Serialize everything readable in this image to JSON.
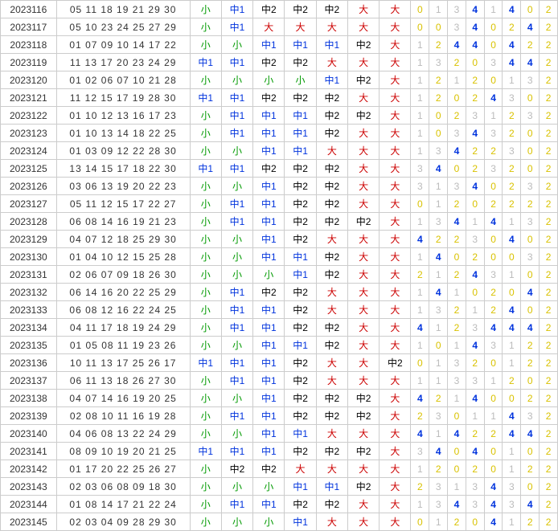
{
  "colors": {
    "green": "#009900",
    "blue": "#0033dd",
    "black": "#000000",
    "red": "#cc0000",
    "yellow": "#d9c200",
    "gray": "#bbbbbb",
    "border": "#cccccc",
    "bg": "#ffffff"
  },
  "legend": {
    "小": "green",
    "中1": "blue",
    "中2": "black",
    "大": "red"
  },
  "countColors": {
    "0": "yellow",
    "1": "gray",
    "2": "yellow",
    "3": "gray",
    "4": "bblue"
  },
  "columns": {
    "period": {
      "width": 54
    },
    "numbers": {
      "width": 130
    },
    "slots": {
      "count": 7,
      "width": 30
    },
    "counts": {
      "count": 8,
      "width": 17
    }
  },
  "rows": [
    {
      "p": "2023116",
      "n": "05 11 18 19 21 29 30",
      "s": [
        "小",
        "中1",
        "中2",
        "中2",
        "中2",
        "大",
        "大"
      ],
      "c": [
        0,
        1,
        3,
        4,
        1,
        4,
        0,
        2
      ]
    },
    {
      "p": "2023117",
      "n": "05 10 23 24 25 27 29",
      "s": [
        "小",
        "中1",
        "大",
        "大",
        "大",
        "大",
        "大"
      ],
      "c": [
        0,
        0,
        3,
        4,
        0,
        2,
        4,
        2
      ]
    },
    {
      "p": "2023118",
      "n": "01 07 09 10 14 17 22",
      "s": [
        "小",
        "小",
        "中1",
        "中1",
        "中1",
        "中2",
        "大"
      ],
      "c": [
        1,
        2,
        4,
        4,
        0,
        4,
        2,
        2
      ]
    },
    {
      "p": "2023119",
      "n": "11 13 17 20 23 24 29",
      "s": [
        "中1",
        "中1",
        "中2",
        "中2",
        "大",
        "大",
        "大"
      ],
      "c": [
        1,
        3,
        2,
        0,
        3,
        4,
        4,
        2
      ]
    },
    {
      "p": "2023120",
      "n": "01 02 06 07 10 21 28",
      "s": [
        "小",
        "小",
        "小",
        "小",
        "中1",
        "中2",
        "大"
      ],
      "c": [
        1,
        2,
        1,
        2,
        0,
        1,
        3,
        2
      ]
    },
    {
      "p": "2023121",
      "n": "11 12 15 17 19 28 30",
      "s": [
        "中1",
        "中1",
        "中2",
        "中2",
        "中2",
        "大",
        "大"
      ],
      "c": [
        1,
        2,
        0,
        2,
        4,
        3,
        0,
        2
      ]
    },
    {
      "p": "2023122",
      "n": "01 10 12 13 16 17 23",
      "s": [
        "小",
        "中1",
        "中1",
        "中1",
        "中2",
        "中2",
        "大"
      ],
      "c": [
        1,
        0,
        2,
        3,
        1,
        2,
        3,
        2
      ]
    },
    {
      "p": "2023123",
      "n": "01 10 13 14 18 22 25",
      "s": [
        "小",
        "中1",
        "中1",
        "中1",
        "中2",
        "大",
        "大"
      ],
      "c": [
        1,
        0,
        3,
        4,
        3,
        2,
        0,
        2
      ]
    },
    {
      "p": "2023124",
      "n": "01 03 09 12 22 28 30",
      "s": [
        "小",
        "小",
        "中1",
        "中1",
        "大",
        "大",
        "大"
      ],
      "c": [
        1,
        3,
        4,
        2,
        2,
        3,
        0,
        2
      ]
    },
    {
      "p": "2023125",
      "n": "13 14 15 17 18 22 30",
      "s": [
        "中1",
        "中1",
        "中2",
        "中2",
        "中2",
        "大",
        "大"
      ],
      "c": [
        3,
        4,
        0,
        2,
        3,
        2,
        0,
        2
      ]
    },
    {
      "p": "2023126",
      "n": "03 06 13 19 20 22 23",
      "s": [
        "小",
        "小",
        "中1",
        "中2",
        "中2",
        "大",
        "大"
      ],
      "c": [
        3,
        1,
        3,
        4,
        0,
        2,
        3,
        2
      ]
    },
    {
      "p": "2023127",
      "n": "05 11 12 15 17 22 27",
      "s": [
        "小",
        "中1",
        "中1",
        "中2",
        "中2",
        "大",
        "大"
      ],
      "c": [
        0,
        1,
        2,
        0,
        2,
        2,
        2,
        2
      ]
    },
    {
      "p": "2023128",
      "n": "06 08 14 16 19 21 23",
      "s": [
        "小",
        "中1",
        "中1",
        "中2",
        "中2",
        "中2",
        "大"
      ],
      "c": [
        1,
        3,
        4,
        1,
        4,
        1,
        3,
        2
      ]
    },
    {
      "p": "2023129",
      "n": "04 07 12 18 25 29 30",
      "s": [
        "小",
        "小",
        "中1",
        "中2",
        "大",
        "大",
        "大"
      ],
      "c": [
        4,
        2,
        2,
        3,
        0,
        4,
        0,
        2
      ]
    },
    {
      "p": "2023130",
      "n": "01 04 10 12 15 25 28",
      "s": [
        "小",
        "小",
        "中1",
        "中1",
        "中2",
        "大",
        "大"
      ],
      "c": [
        1,
        4,
        0,
        2,
        0,
        0,
        3,
        2
      ]
    },
    {
      "p": "2023131",
      "n": "02 06 07 09 18 26 30",
      "s": [
        "小",
        "小",
        "小",
        "中1",
        "中2",
        "大",
        "大"
      ],
      "c": [
        2,
        1,
        2,
        4,
        3,
        1,
        0,
        2
      ]
    },
    {
      "p": "2023132",
      "n": "06 14 16 20 22 25 29",
      "s": [
        "小",
        "中1",
        "中2",
        "中2",
        "大",
        "大",
        "大"
      ],
      "c": [
        1,
        4,
        1,
        0,
        2,
        0,
        4,
        2
      ]
    },
    {
      "p": "2023133",
      "n": "06 08 12 16 22 24 25",
      "s": [
        "小",
        "中1",
        "中1",
        "中2",
        "大",
        "大",
        "大"
      ],
      "c": [
        1,
        3,
        2,
        1,
        2,
        4,
        0,
        2
      ]
    },
    {
      "p": "2023134",
      "n": "04 11 17 18 19 24 29",
      "s": [
        "小",
        "中1",
        "中1",
        "中2",
        "中2",
        "大",
        "大"
      ],
      "c": [
        4,
        1,
        2,
        3,
        4,
        4,
        4,
        2
      ]
    },
    {
      "p": "2023135",
      "n": "01 05 08 11 19 23 26",
      "s": [
        "小",
        "小",
        "中1",
        "中1",
        "中2",
        "大",
        "大"
      ],
      "c": [
        1,
        0,
        1,
        4,
        3,
        1,
        2,
        2
      ]
    },
    {
      "p": "2023136",
      "n": "10 11 13 17 25 26 17",
      "s": [
        "中1",
        "中1",
        "中1",
        "中2",
        "大",
        "大",
        "中2"
      ],
      "c": [
        0,
        1,
        3,
        2,
        0,
        1,
        2,
        2
      ]
    },
    {
      "p": "2023137",
      "n": "06 11 13 18 26 27 30",
      "s": [
        "小",
        "中1",
        "中1",
        "中2",
        "大",
        "大",
        "大"
      ],
      "c": [
        1,
        1,
        3,
        3,
        1,
        2,
        0,
        2
      ]
    },
    {
      "p": "2023138",
      "n": "04 07 14 16 19 20 25",
      "s": [
        "小",
        "小",
        "中1",
        "中2",
        "中2",
        "中2",
        "大"
      ],
      "c": [
        4,
        2,
        1,
        4,
        0,
        0,
        2,
        2
      ]
    },
    {
      "p": "2023139",
      "n": "02 08 10 11 16 19 28",
      "s": [
        "小",
        "中1",
        "中1",
        "中2",
        "中2",
        "中2",
        "大"
      ],
      "c": [
        2,
        3,
        0,
        1,
        1,
        4,
        3,
        2
      ]
    },
    {
      "p": "2023140",
      "n": "04 06 08 13 22 24 29",
      "s": [
        "小",
        "小",
        "中1",
        "中1",
        "大",
        "大",
        "大"
      ],
      "c": [
        4,
        1,
        4,
        2,
        2,
        4,
        4,
        2
      ]
    },
    {
      "p": "2023141",
      "n": "08 09 10 19 20 21 25",
      "s": [
        "中1",
        "中1",
        "中1",
        "中2",
        "中2",
        "中2",
        "大"
      ],
      "c": [
        3,
        4,
        0,
        4,
        0,
        1,
        0,
        2
      ]
    },
    {
      "p": "2023142",
      "n": "01 17 20 22 25 26 27",
      "s": [
        "小",
        "中2",
        "中2",
        "大",
        "大",
        "大",
        "大"
      ],
      "c": [
        1,
        2,
        0,
        2,
        0,
        1,
        2,
        2
      ]
    },
    {
      "p": "2023143",
      "n": "02 03 06 08 09 18 30",
      "s": [
        "小",
        "小",
        "小",
        "中1",
        "中1",
        "中2",
        "大"
      ],
      "c": [
        2,
        3,
        1,
        3,
        4,
        3,
        0,
        2
      ]
    },
    {
      "p": "2023144",
      "n": "01 08 14 17 21 22 24",
      "s": [
        "小",
        "中1",
        "中1",
        "中2",
        "中2",
        "大",
        "大"
      ],
      "c": [
        1,
        3,
        4,
        3,
        4,
        3,
        4,
        2
      ]
    },
    {
      "p": "2023145",
      "n": "02 03 04 09 28 29 30",
      "s": [
        "小",
        "小",
        "小",
        "中1",
        "大",
        "大",
        "大"
      ],
      "c": [
        0,
        1,
        2,
        0,
        4,
        1,
        2,
        2
      ]
    }
  ]
}
